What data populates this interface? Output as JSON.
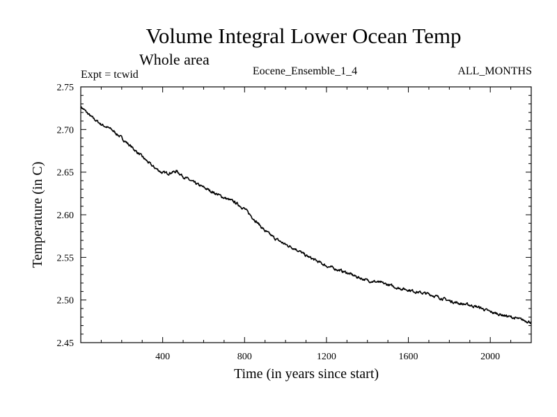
{
  "chart_data": {
    "type": "line",
    "title": "Volume Integral Lower Ocean Temp",
    "subtitle": "Whole area",
    "left_note": "Expt = tcwid",
    "center_note": "Eocene_Ensemble_1_4",
    "right_note": "ALL_MONTHS",
    "xlabel": "Time (in years since start)",
    "ylabel": "Temperature (in C)",
    "xlim": [
      0,
      2200
    ],
    "ylim": [
      2.45,
      2.75
    ],
    "xticks": [
      400,
      800,
      1200,
      1600,
      2000
    ],
    "xtick_labels": [
      "400",
      "800",
      "1200",
      "1600",
      "2000"
    ],
    "yticks": [
      2.45,
      2.5,
      2.55,
      2.6,
      2.65,
      2.7,
      2.75
    ],
    "ytick_labels": [
      "2.45",
      "2.50",
      "2.55",
      "2.60",
      "2.65",
      "2.70",
      "2.75"
    ],
    "grid": false,
    "line_color": "#000000",
    "series": [
      {
        "x": [
          0,
          50,
          100,
          150,
          200,
          250,
          300,
          350,
          400,
          430,
          470,
          500,
          550,
          600,
          650,
          700,
          750,
          800,
          850,
          900,
          950,
          1000,
          1050,
          1100,
          1150,
          1200,
          1250,
          1300,
          1350,
          1400,
          1450,
          1500,
          1550,
          1600,
          1650,
          1700,
          1750,
          1800,
          1850,
          1900,
          1950,
          2000,
          2050,
          2100,
          2150,
          2200
        ],
        "values": [
          2.727,
          2.715,
          2.706,
          2.7,
          2.69,
          2.679,
          2.668,
          2.657,
          2.649,
          2.649,
          2.651,
          2.645,
          2.638,
          2.632,
          2.626,
          2.62,
          2.615,
          2.607,
          2.594,
          2.581,
          2.572,
          2.565,
          2.56,
          2.552,
          2.546,
          2.54,
          2.536,
          2.532,
          2.527,
          2.523,
          2.521,
          2.518,
          2.514,
          2.512,
          2.509,
          2.507,
          2.503,
          2.499,
          2.496,
          2.494,
          2.491,
          2.486,
          2.483,
          2.48,
          2.477,
          2.474
        ]
      }
    ]
  }
}
